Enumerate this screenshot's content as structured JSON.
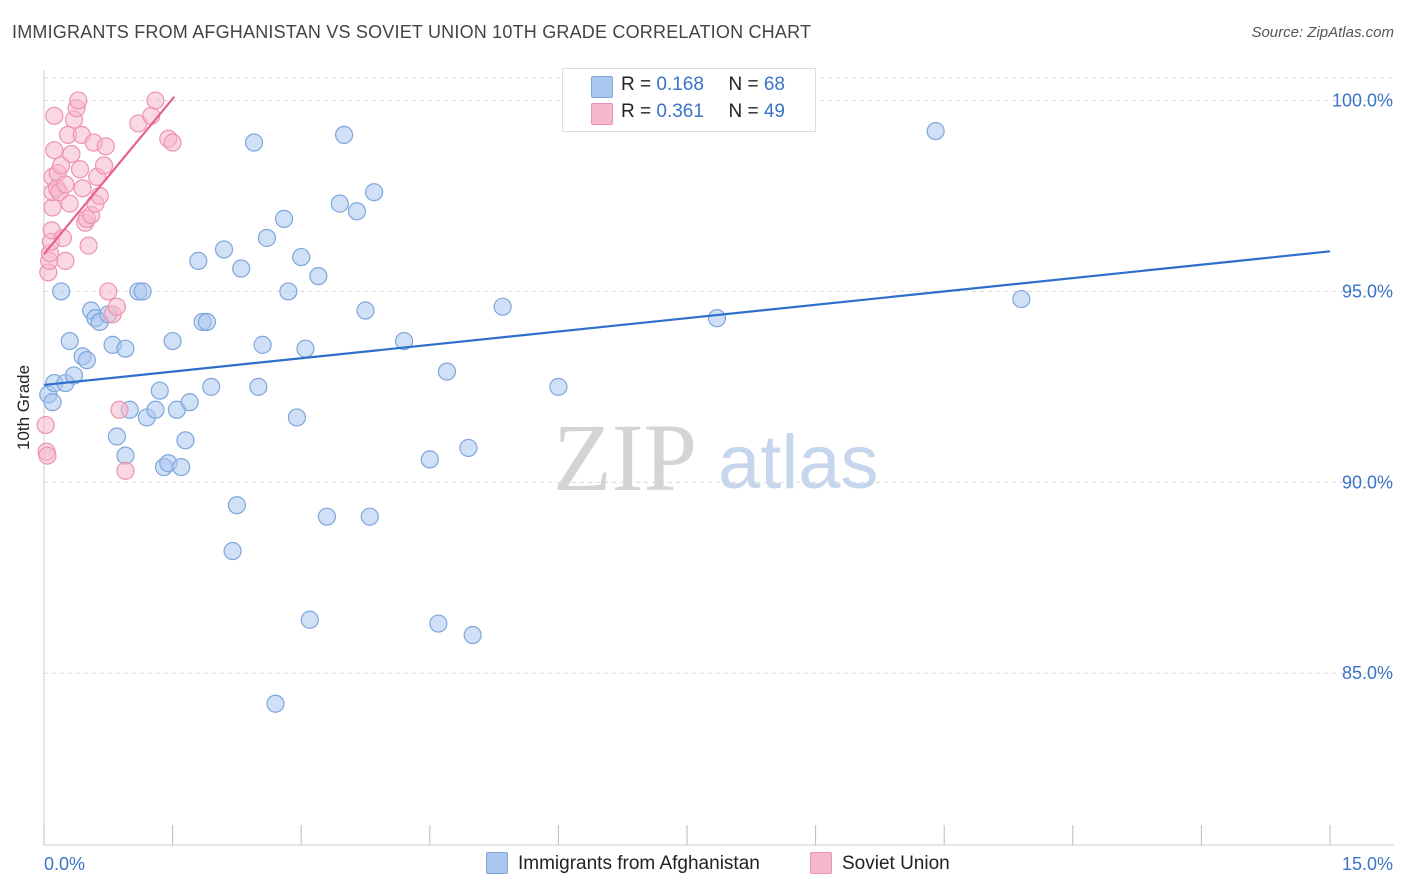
{
  "title": "IMMIGRANTS FROM AFGHANISTAN VS SOVIET UNION 10TH GRADE CORRELATION CHART",
  "source": "Source: ZipAtlas.com",
  "watermark": {
    "zip": "ZIP",
    "atlas": "atlas"
  },
  "colors": {
    "blue_fill": "#a9c6ee",
    "blue_stroke": "#7fa6db",
    "blue_line": "#2e6fcc",
    "pink_fill": "#f6b8cb",
    "pink_stroke": "#ee93b0",
    "pink_line": "#e8608f",
    "grid": "#d9d9d9",
    "tick_label": "#3a73c8"
  },
  "legend_top": [
    {
      "r_label": "R = ",
      "r_value": "0.168",
      "n_label": "N = ",
      "n_value": "68"
    },
    {
      "r_label": "R = ",
      "r_value": "0.361",
      "n_label": "N = ",
      "n_value": "49"
    }
  ],
  "chart_data": {
    "type": "scatter",
    "title": "IMMIGRANTS FROM AFGHANISTAN VS SOVIET UNION 10TH GRADE CORRELATION CHART",
    "xlabel": "",
    "ylabel": "10th Grade",
    "xlim": [
      0,
      15
    ],
    "ylim": [
      80.5,
      100.8
    ],
    "x_tick_labels": [
      "0.0%",
      "15.0%"
    ],
    "y_ticks": [
      85,
      90,
      95,
      100
    ],
    "y_tick_labels": [
      "85.0%",
      "90.0%",
      "95.0%",
      "100.0%"
    ],
    "grid": true,
    "legend_position": "bottom",
    "series": [
      {
        "name": "Immigrants from Afghanistan",
        "color": "blue",
        "R": 0.168,
        "N": 68,
        "trend": {
          "x": [
            0,
            15
          ],
          "y": [
            92.55,
            96.05
          ]
        },
        "points": [
          [
            0.05,
            92.3
          ],
          [
            0.1,
            92.1
          ],
          [
            0.12,
            92.6
          ],
          [
            0.2,
            95.0
          ],
          [
            0.25,
            92.6
          ],
          [
            0.3,
            93.7
          ],
          [
            0.35,
            92.8
          ],
          [
            0.45,
            93.3
          ],
          [
            0.5,
            93.2
          ],
          [
            0.55,
            94.5
          ],
          [
            0.6,
            94.3
          ],
          [
            0.65,
            94.2
          ],
          [
            0.75,
            94.4
          ],
          [
            0.8,
            93.6
          ],
          [
            0.85,
            91.2
          ],
          [
            0.95,
            90.7
          ],
          [
            0.95,
            93.5
          ],
          [
            1.0,
            91.9
          ],
          [
            1.1,
            95.0
          ],
          [
            1.15,
            95.0
          ],
          [
            1.2,
            91.7
          ],
          [
            1.3,
            91.9
          ],
          [
            1.35,
            92.4
          ],
          [
            1.4,
            90.4
          ],
          [
            1.45,
            90.5
          ],
          [
            1.5,
            93.7
          ],
          [
            1.55,
            91.9
          ],
          [
            1.6,
            90.4
          ],
          [
            1.65,
            91.1
          ],
          [
            1.7,
            92.1
          ],
          [
            1.8,
            95.8
          ],
          [
            1.85,
            94.2
          ],
          [
            1.9,
            94.2
          ],
          [
            1.95,
            92.5
          ],
          [
            2.1,
            96.1
          ],
          [
            2.2,
            88.2
          ],
          [
            2.25,
            89.4
          ],
          [
            2.3,
            95.6
          ],
          [
            2.45,
            98.9
          ],
          [
            2.5,
            92.5
          ],
          [
            2.55,
            93.6
          ],
          [
            2.6,
            96.4
          ],
          [
            2.7,
            84.2
          ],
          [
            2.8,
            96.9
          ],
          [
            2.85,
            95.0
          ],
          [
            2.95,
            91.7
          ],
          [
            3.0,
            95.9
          ],
          [
            3.05,
            93.5
          ],
          [
            3.1,
            86.4
          ],
          [
            3.2,
            95.4
          ],
          [
            3.3,
            89.1
          ],
          [
            3.45,
            97.3
          ],
          [
            3.5,
            99.1
          ],
          [
            3.65,
            97.1
          ],
          [
            3.75,
            94.5
          ],
          [
            3.8,
            89.1
          ],
          [
            3.85,
            97.6
          ],
          [
            4.2,
            93.7
          ],
          [
            4.5,
            90.6
          ],
          [
            4.6,
            86.3
          ],
          [
            4.7,
            92.9
          ],
          [
            4.95,
            90.9
          ],
          [
            5.0,
            86.0
          ],
          [
            5.35,
            94.6
          ],
          [
            6.0,
            92.5
          ],
          [
            7.85,
            94.3
          ],
          [
            10.4,
            99.2
          ],
          [
            11.4,
            94.8
          ]
        ]
      },
      {
        "name": "Soviet Union",
        "color": "pink",
        "R": 0.361,
        "N": 49,
        "trend": {
          "x": [
            0,
            1.52
          ],
          "y": [
            95.98,
            100.1
          ]
        },
        "points": [
          [
            0.02,
            91.5
          ],
          [
            0.03,
            90.8
          ],
          [
            0.04,
            90.7
          ],
          [
            0.05,
            95.5
          ],
          [
            0.06,
            95.8
          ],
          [
            0.07,
            96.0
          ],
          [
            0.08,
            96.3
          ],
          [
            0.09,
            96.6
          ],
          [
            0.1,
            97.2
          ],
          [
            0.1,
            97.6
          ],
          [
            0.1,
            98.0
          ],
          [
            0.12,
            98.7
          ],
          [
            0.12,
            99.6
          ],
          [
            0.15,
            97.7
          ],
          [
            0.16,
            98.1
          ],
          [
            0.18,
            97.6
          ],
          [
            0.2,
            98.3
          ],
          [
            0.22,
            96.4
          ],
          [
            0.25,
            95.8
          ],
          [
            0.25,
            97.8
          ],
          [
            0.28,
            99.1
          ],
          [
            0.3,
            97.3
          ],
          [
            0.32,
            98.6
          ],
          [
            0.35,
            99.5
          ],
          [
            0.38,
            99.8
          ],
          [
            0.4,
            100.0
          ],
          [
            0.42,
            98.2
          ],
          [
            0.44,
            99.1
          ],
          [
            0.45,
            97.7
          ],
          [
            0.48,
            96.8
          ],
          [
            0.5,
            96.9
          ],
          [
            0.52,
            96.2
          ],
          [
            0.55,
            97.0
          ],
          [
            0.58,
            98.9
          ],
          [
            0.6,
            97.3
          ],
          [
            0.62,
            98.0
          ],
          [
            0.65,
            97.5
          ],
          [
            0.7,
            98.3
          ],
          [
            0.72,
            98.8
          ],
          [
            0.75,
            95.0
          ],
          [
            0.8,
            94.4
          ],
          [
            0.85,
            94.6
          ],
          [
            0.88,
            91.9
          ],
          [
            0.95,
            90.3
          ],
          [
            1.1,
            99.4
          ],
          [
            1.25,
            99.6
          ],
          [
            1.3,
            100.0
          ],
          [
            1.45,
            99.0
          ],
          [
            1.5,
            98.9
          ]
        ]
      }
    ]
  }
}
